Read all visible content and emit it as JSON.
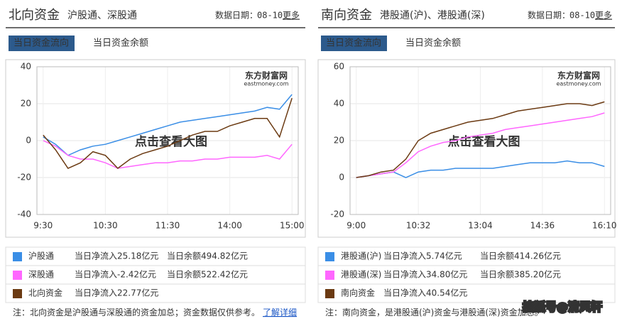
{
  "panels": [
    {
      "title": "北向资金",
      "subtitle": "沪股通、深股通",
      "date_label": "数据日期：",
      "date": "08-10",
      "more": "更多",
      "tabs": [
        "当日资金流向",
        "当日资金余额"
      ],
      "watermark": "东方财富网",
      "watermark_sub": "eastmoney.com",
      "overlay": "点击查看大图",
      "rows": [
        {
          "inflow_label": "当日净流入",
          "inflow": "25.18亿元",
          "inflow_color": "#cc0000",
          "balance_label": "当日余额",
          "balance": "494.82亿元"
        },
        {
          "inflow_label": "当日净流入",
          "inflow": "-2.42亿元",
          "inflow_color": "#009900",
          "balance_label": "当日余额",
          "balance": "522.42亿元"
        },
        {
          "inflow_label": "当日净流入",
          "inflow": "22.77亿元",
          "inflow_color": "#cc0000"
        }
      ],
      "note": "注：北向资金是沪股通与深股通的资金加总；资金数据仅供参考。",
      "note_link": "了解详细"
    },
    {
      "title": "南向资金",
      "subtitle": "港股通(沪)、港股通(深)",
      "date_label": "数据日期：",
      "date": "08-10",
      "more": "更多",
      "tabs": [
        "当日资金流向",
        "当日资金余额"
      ],
      "watermark": "东方财富网",
      "watermark_sub": "eastmoney.com",
      "overlay": "点击查看大图",
      "rows": [
        {
          "inflow_label": "当日净流入",
          "inflow": "5.74亿元",
          "inflow_color": "#cc0000",
          "balance_label": "当日余额",
          "balance": "414.26亿元"
        },
        {
          "inflow_label": "当日净流入",
          "inflow": "34.80亿元",
          "inflow_color": "#cc0000",
          "balance_label": "当日余额",
          "balance": "385.20亿元"
        },
        {
          "inflow_label": "当日净流入",
          "inflow": "40.54亿元",
          "inflow_color": "#cc0000"
        }
      ],
      "note": "注：南向资金，是港股通(沪)资金与港股通(深)资金加总。"
    }
  ],
  "source_mark": "搜狐号@清风轩",
  "chart_data": [
    {
      "type": "line",
      "categories": [
        "9:30",
        null,
        null,
        null,
        null,
        "10:30",
        null,
        null,
        null,
        null,
        "11:30",
        null,
        null,
        null,
        null,
        "14:00",
        null,
        null,
        null,
        null,
        "15:00"
      ],
      "ylim": [
        -40,
        40
      ],
      "yticks": [
        -40,
        -20,
        0,
        20,
        40
      ],
      "grid": true,
      "series": [
        {
          "name": "沪股通",
          "color": "#3a8ee6",
          "values": [
            2,
            -2,
            -8,
            -5,
            -3,
            -2,
            0,
            2,
            4,
            6,
            8,
            10,
            11,
            12,
            13,
            14,
            15,
            16,
            18,
            17,
            25
          ]
        },
        {
          "name": "深股通",
          "color": "#ff66ff",
          "values": [
            0,
            -3,
            -8,
            -10,
            -10,
            -12,
            -15,
            -14,
            -13,
            -12,
            -12,
            -11,
            -11,
            -10,
            -10,
            -9,
            -9,
            -9,
            -8,
            -10,
            -2
          ]
        },
        {
          "name": "北向资金",
          "color": "#6b3a12",
          "values": [
            3,
            -5,
            -15,
            -12,
            -6,
            -8,
            -15,
            -10,
            -7,
            -5,
            -3,
            0,
            3,
            5,
            5,
            8,
            10,
            12,
            12,
            2,
            23
          ]
        }
      ]
    },
    {
      "type": "line",
      "categories": [
        "9:00",
        null,
        null,
        null,
        null,
        "10:32",
        null,
        null,
        null,
        null,
        "13:04",
        null,
        null,
        null,
        null,
        "14:36",
        null,
        null,
        null,
        null,
        "16:10"
      ],
      "ylim": [
        -20,
        60
      ],
      "yticks": [
        -20,
        0,
        20,
        40,
        60
      ],
      "grid": true,
      "series": [
        {
          "name": "港股通(沪)",
          "color": "#3a8ee6",
          "values": [
            0,
            1,
            2,
            3,
            0,
            3,
            4,
            4,
            5,
            5,
            5,
            5,
            6,
            7,
            8,
            8,
            8,
            9,
            8,
            8,
            6
          ]
        },
        {
          "name": "港股通(深)",
          "color": "#ff66ff",
          "values": [
            0,
            1,
            2,
            3,
            8,
            14,
            17,
            19,
            20,
            22,
            23,
            24,
            26,
            27,
            28,
            29,
            30,
            31,
            32,
            33,
            35
          ]
        },
        {
          "name": "南向资金",
          "color": "#6b3a12",
          "values": [
            0,
            1,
            3,
            4,
            10,
            20,
            24,
            26,
            28,
            30,
            31,
            32,
            34,
            36,
            37,
            38,
            39,
            40,
            40,
            39,
            41
          ]
        }
      ]
    }
  ]
}
